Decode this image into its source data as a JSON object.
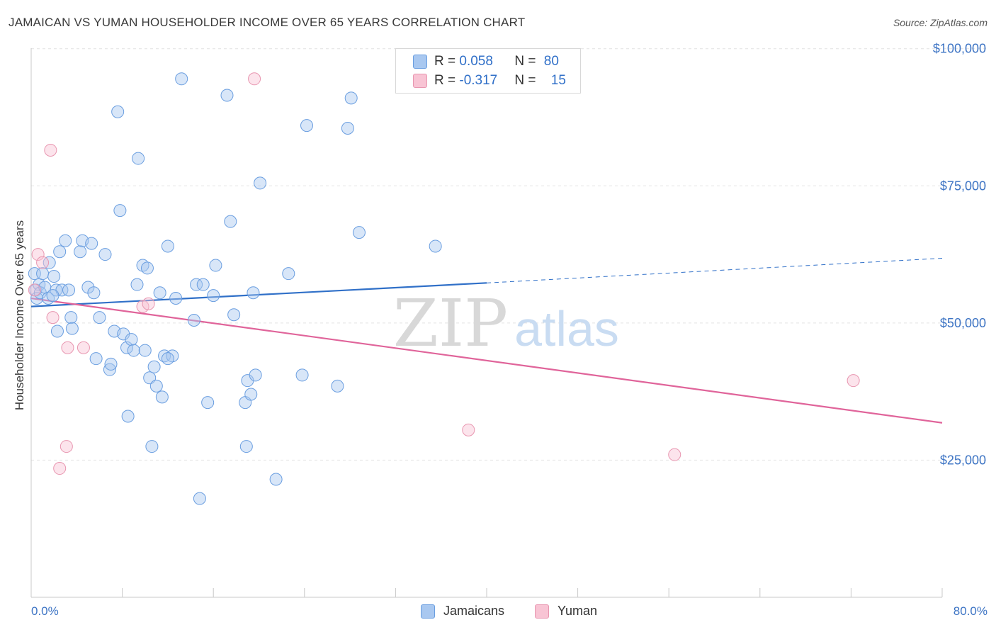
{
  "title": "JAMAICAN VS YUMAN HOUSEHOLDER INCOME OVER 65 YEARS CORRELATION CHART",
  "source": "Source: ZipAtlas.com",
  "watermark": {
    "zip": "ZIP",
    "atlas": "atlas"
  },
  "legend_top": {
    "rows": [
      {
        "r_label": "R = ",
        "r_value": "0.058",
        "n_label": "N = ",
        "n_value": "80",
        "color": "#a9c8f0",
        "border": "#6a9ee0"
      },
      {
        "r_label": "R = ",
        "r_value": "-0.317",
        "n_label": "N = ",
        "n_value": "15",
        "color": "#f8c4d4",
        "border": "#e896b0"
      }
    ]
  },
  "legend_bottom": [
    {
      "label": "Jamaicans",
      "color": "#a9c8f0",
      "border": "#6a9ee0"
    },
    {
      "label": "Yuman",
      "color": "#f8c4d4",
      "border": "#e896b0"
    }
  ],
  "chart_data": {
    "type": "scatter",
    "title": "JAMAICAN VS YUMAN HOUSEHOLDER INCOME OVER 65 YEARS CORRELATION CHART",
    "xlabel": "",
    "ylabel": "Householder Income Over 65 years",
    "xlim": [
      0,
      80
    ],
    "ylim": [
      0,
      105000
    ],
    "x_tick_labels": [
      "0.0%",
      "80.0%"
    ],
    "y_ticks": [
      25000,
      50000,
      75000,
      100000
    ],
    "y_tick_labels": [
      "$25,000",
      "$50,000",
      "$75,000",
      "$100,000"
    ],
    "grid": true,
    "legend_position": "top-center",
    "series": [
      {
        "name": "Jamaicans",
        "color": "#7eaee8",
        "points": [
          [
            0.3,
            59000
          ],
          [
            0.4,
            56000
          ],
          [
            0.5,
            54500
          ],
          [
            0.7,
            57000
          ],
          [
            0.8,
            55500
          ],
          [
            1.0,
            59000
          ],
          [
            1.2,
            56500
          ],
          [
            1.5,
            54500
          ],
          [
            1.6,
            61000
          ],
          [
            2.0,
            58500
          ],
          [
            2.2,
            56000
          ],
          [
            2.5,
            63000
          ],
          [
            2.7,
            56000
          ],
          [
            3.0,
            65000
          ],
          [
            3.3,
            56000
          ],
          [
            3.5,
            51000
          ],
          [
            3.6,
            49000
          ],
          [
            4.3,
            63000
          ],
          [
            4.5,
            65000
          ],
          [
            5.0,
            56500
          ],
          [
            5.3,
            64500
          ],
          [
            5.7,
            43500
          ],
          [
            6.0,
            51000
          ],
          [
            6.5,
            62500
          ],
          [
            6.9,
            41500
          ],
          [
            7.0,
            42500
          ],
          [
            7.3,
            48500
          ],
          [
            7.6,
            88500
          ],
          [
            7.8,
            70500
          ],
          [
            8.1,
            48000
          ],
          [
            8.4,
            45500
          ],
          [
            8.5,
            33000
          ],
          [
            8.8,
            47000
          ],
          [
            9.0,
            45000
          ],
          [
            9.4,
            80000
          ],
          [
            9.8,
            60500
          ],
          [
            10.0,
            45000
          ],
          [
            10.2,
            60000
          ],
          [
            10.4,
            40000
          ],
          [
            10.6,
            27500
          ],
          [
            10.8,
            42000
          ],
          [
            11.0,
            38500
          ],
          [
            11.3,
            55500
          ],
          [
            11.5,
            36500
          ],
          [
            11.7,
            44000
          ],
          [
            12.0,
            64000
          ],
          [
            12.4,
            44000
          ],
          [
            12.7,
            54500
          ],
          [
            13.2,
            94500
          ],
          [
            14.3,
            50500
          ],
          [
            14.5,
            57000
          ],
          [
            14.8,
            18000
          ],
          [
            15.1,
            57000
          ],
          [
            15.5,
            35500
          ],
          [
            16.2,
            60500
          ],
          [
            17.2,
            91500
          ],
          [
            17.5,
            68500
          ],
          [
            17.8,
            51500
          ],
          [
            18.8,
            35500
          ],
          [
            18.9,
            27500
          ],
          [
            19.0,
            39500
          ],
          [
            19.3,
            37000
          ],
          [
            19.5,
            55500
          ],
          [
            19.7,
            40500
          ],
          [
            20.1,
            75500
          ],
          [
            21.5,
            21500
          ],
          [
            22.6,
            59000
          ],
          [
            23.8,
            40500
          ],
          [
            24.2,
            86000
          ],
          [
            26.9,
            38500
          ],
          [
            27.8,
            85500
          ],
          [
            28.1,
            91000
          ],
          [
            28.8,
            66500
          ],
          [
            35.5,
            64000
          ],
          [
            12.0,
            43500
          ],
          [
            2.3,
            48500
          ],
          [
            5.5,
            55500
          ],
          [
            1.9,
            55000
          ],
          [
            9.3,
            57000
          ],
          [
            16.0,
            55000
          ]
        ]
      },
      {
        "name": "Yuman",
        "color": "#f1a3bc",
        "points": [
          [
            0.3,
            56000
          ],
          [
            0.6,
            62500
          ],
          [
            1.0,
            61000
          ],
          [
            1.7,
            81500
          ],
          [
            1.9,
            51000
          ],
          [
            2.5,
            23500
          ],
          [
            3.1,
            27500
          ],
          [
            3.2,
            45500
          ],
          [
            4.6,
            45500
          ],
          [
            9.8,
            53000
          ],
          [
            10.3,
            53500
          ],
          [
            19.6,
            94500
          ],
          [
            38.4,
            30500
          ],
          [
            56.5,
            26000
          ],
          [
            72.2,
            39500
          ]
        ]
      }
    ],
    "trend_lines": [
      {
        "name": "Jamaicans",
        "color": "#3070c8",
        "x": [
          0,
          40
        ],
        "y": [
          53000,
          57300
        ],
        "dashed_extension_to_x": 80,
        "dashed_extension_y": 61800
      },
      {
        "name": "Yuman",
        "color": "#e0649a",
        "x": [
          0,
          80
        ],
        "y": [
          54500,
          31800
        ]
      }
    ]
  }
}
